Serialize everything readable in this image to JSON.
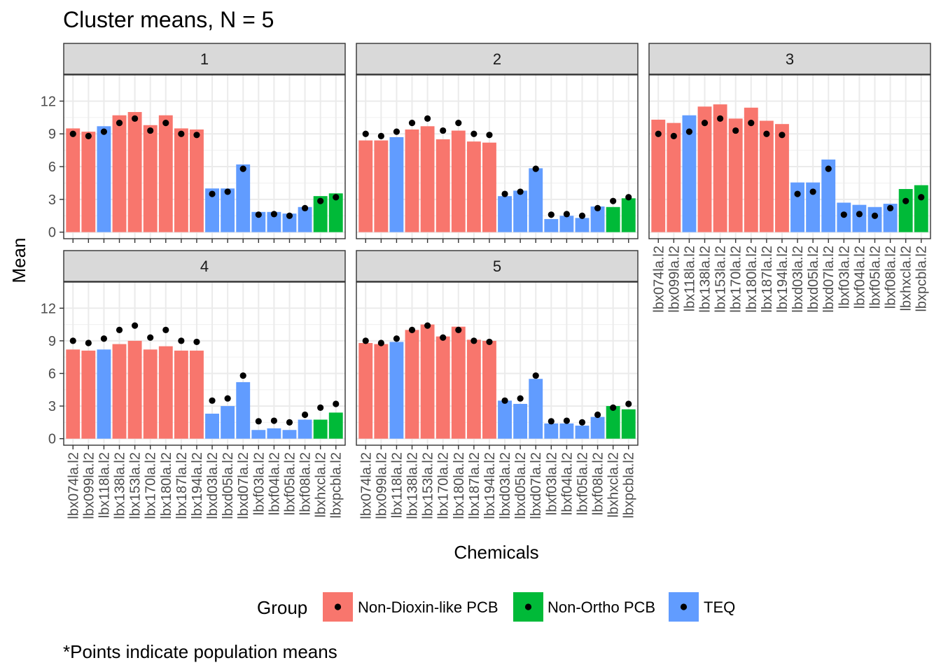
{
  "chart_data": {
    "type": "bar",
    "title": "Cluster means, N = 5",
    "xlabel": "Chemicals",
    "ylabel": "Mean",
    "caption": "*Points indicate population means",
    "ylim": [
      -0.6,
      14.4
    ],
    "yticks": [
      0,
      3,
      6,
      9,
      12
    ],
    "grid": true,
    "legend_position": "bottom",
    "legend": {
      "title": "Group",
      "entries": [
        "Non-Dioxin-like PCB",
        "Non-Ortho PCB",
        "TEQ"
      ]
    },
    "group_colors": {
      "Non-Dioxin-like PCB": "#F8766D",
      "Non-Ortho PCB": "#00BA38",
      "TEQ": "#619CFF"
    },
    "categories": [
      "lbx074la.l2",
      "lbx099la.l2",
      "lbx118la.l2",
      "lbx138la.l2",
      "lbx153la.l2",
      "lbx170la.l2",
      "lbx180la.l2",
      "lbx187la.l2",
      "lbx194la.l2",
      "lbxd03la.l2",
      "lbxd05la.l2",
      "lbxd07la.l2",
      "lbxf03la.l2",
      "lbxf04la.l2",
      "lbxf05la.l2",
      "lbxf08la.l2",
      "lbxhxcla.l2",
      "lbxpcbla.l2"
    ],
    "category_groups": [
      "Non-Dioxin-like PCB",
      "Non-Dioxin-like PCB",
      "TEQ",
      "Non-Dioxin-like PCB",
      "Non-Dioxin-like PCB",
      "Non-Dioxin-like PCB",
      "Non-Dioxin-like PCB",
      "Non-Dioxin-like PCB",
      "Non-Dioxin-like PCB",
      "TEQ",
      "TEQ",
      "TEQ",
      "TEQ",
      "TEQ",
      "TEQ",
      "TEQ",
      "Non-Ortho PCB",
      "Non-Ortho PCB"
    ],
    "population_means": [
      9.0,
      8.8,
      9.2,
      10.0,
      10.4,
      9.3,
      10.0,
      9.0,
      8.9,
      3.5,
      3.7,
      5.8,
      1.6,
      1.65,
      1.5,
      2.2,
      2.85,
      3.2
    ],
    "facets": [
      {
        "label": "1",
        "values": [
          9.5,
          9.2,
          9.7,
          10.7,
          11.0,
          9.8,
          10.7,
          9.5,
          9.4,
          4.0,
          4.0,
          6.2,
          1.85,
          1.85,
          1.7,
          2.3,
          3.3,
          3.55
        ]
      },
      {
        "label": "2",
        "values": [
          8.4,
          8.4,
          8.7,
          9.4,
          9.7,
          8.5,
          9.3,
          8.3,
          8.2,
          3.3,
          3.8,
          5.85,
          1.2,
          1.5,
          1.3,
          2.35,
          2.3,
          3.1
        ]
      },
      {
        "label": "3",
        "values": [
          10.3,
          10.0,
          10.7,
          11.5,
          11.7,
          10.4,
          11.4,
          10.2,
          9.9,
          4.55,
          4.55,
          6.65,
          2.7,
          2.5,
          2.3,
          2.6,
          3.95,
          4.3
        ]
      },
      {
        "label": "4",
        "values": [
          8.2,
          8.1,
          8.2,
          8.7,
          9.0,
          8.2,
          8.5,
          8.1,
          8.1,
          2.3,
          3.0,
          5.2,
          0.8,
          0.95,
          0.8,
          1.75,
          1.75,
          2.4
        ]
      },
      {
        "label": "5",
        "values": [
          8.8,
          8.7,
          8.9,
          10.0,
          10.5,
          9.4,
          10.3,
          9.1,
          9.0,
          3.5,
          3.2,
          5.5,
          1.4,
          1.4,
          1.2,
          2.0,
          3.0,
          2.7
        ]
      }
    ]
  }
}
